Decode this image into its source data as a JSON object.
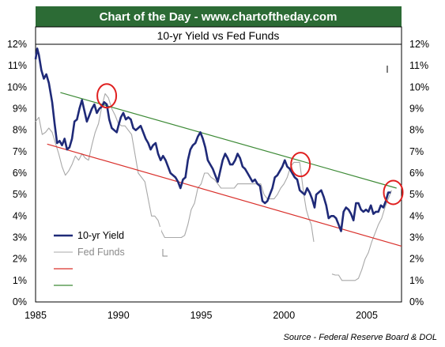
{
  "chart_data": {
    "type": "line",
    "title": "Chart of the Day - www.chartoftheday.com",
    "subtitle": "10-yr Yield vs Fed Funds",
    "source": "Source - Federal Reserve Board & DOL",
    "xlim": [
      1985,
      2007.1
    ],
    "ylim": [
      0,
      12
    ],
    "x_ticks": [
      1985,
      1990,
      1995,
      2000,
      2005
    ],
    "y_ticks": [
      "0%",
      "1%",
      "2%",
      "3%",
      "4%",
      "5%",
      "6%",
      "7%",
      "8%",
      "9%",
      "10%",
      "11%",
      "12%"
    ],
    "grid": false,
    "legend_position": "bottom-left",
    "colors": {
      "header_bg": "#2c6b35",
      "yield": "#1f2a78",
      "fed_funds": "#a8a8a8",
      "lower_trend": "#d9302b",
      "upper_trend": "#3d8a36",
      "circle": "#e02020",
      "legend_bg": "#ffffff"
    },
    "legend": [
      {
        "label": "10-yr Yield",
        "key": "yield"
      },
      {
        "label": "Fed Funds",
        "key": "fed_funds"
      },
      {
        "label": "",
        "key": "lower_trend"
      },
      {
        "label": "",
        "key": "upper_trend"
      }
    ],
    "series": [
      {
        "name": "10-yr Yield",
        "key": "yield",
        "points": [
          [
            1985.0,
            11.3
          ],
          [
            1985.1,
            11.8
          ],
          [
            1985.2,
            11.5
          ],
          [
            1985.35,
            10.8
          ],
          [
            1985.5,
            10.4
          ],
          [
            1985.65,
            10.6
          ],
          [
            1985.8,
            10.2
          ],
          [
            1986.0,
            9.3
          ],
          [
            1986.15,
            8.3
          ],
          [
            1986.3,
            7.4
          ],
          [
            1986.45,
            7.5
          ],
          [
            1986.6,
            7.3
          ],
          [
            1986.75,
            7.6
          ],
          [
            1986.9,
            7.1
          ],
          [
            1987.05,
            7.2
          ],
          [
            1987.2,
            7.6
          ],
          [
            1987.35,
            8.4
          ],
          [
            1987.5,
            8.5
          ],
          [
            1987.65,
            9.0
          ],
          [
            1987.8,
            9.4
          ],
          [
            1987.95,
            8.9
          ],
          [
            1988.1,
            8.4
          ],
          [
            1988.25,
            8.7
          ],
          [
            1988.4,
            9.0
          ],
          [
            1988.55,
            9.2
          ],
          [
            1988.7,
            8.8
          ],
          [
            1988.85,
            9.0
          ],
          [
            1989.0,
            9.1
          ],
          [
            1989.15,
            9.3
          ],
          [
            1989.3,
            9.2
          ],
          [
            1989.45,
            8.5
          ],
          [
            1989.6,
            8.1
          ],
          [
            1989.75,
            8.0
          ],
          [
            1989.9,
            7.9
          ],
          [
            1990.0,
            8.2
          ],
          [
            1990.15,
            8.6
          ],
          [
            1990.3,
            8.8
          ],
          [
            1990.45,
            8.5
          ],
          [
            1990.6,
            8.6
          ],
          [
            1990.75,
            8.5
          ],
          [
            1990.9,
            8.1
          ],
          [
            1991.05,
            8.0
          ],
          [
            1991.2,
            8.1
          ],
          [
            1991.35,
            8.2
          ],
          [
            1991.5,
            7.9
          ],
          [
            1991.65,
            7.6
          ],
          [
            1991.8,
            7.4
          ],
          [
            1991.95,
            7.1
          ],
          [
            1992.1,
            7.3
          ],
          [
            1992.25,
            7.4
          ],
          [
            1992.4,
            6.9
          ],
          [
            1992.55,
            6.6
          ],
          [
            1992.7,
            6.8
          ],
          [
            1992.85,
            6.6
          ],
          [
            1993.0,
            6.3
          ],
          [
            1993.15,
            6.0
          ],
          [
            1993.3,
            5.9
          ],
          [
            1993.45,
            5.8
          ],
          [
            1993.6,
            5.6
          ],
          [
            1993.75,
            5.3
          ],
          [
            1993.9,
            5.7
          ],
          [
            1994.05,
            5.8
          ],
          [
            1994.2,
            6.6
          ],
          [
            1994.35,
            7.1
          ],
          [
            1994.5,
            7.3
          ],
          [
            1994.65,
            7.4
          ],
          [
            1994.8,
            7.7
          ],
          [
            1994.95,
            7.9
          ],
          [
            1995.1,
            7.6
          ],
          [
            1995.25,
            7.2
          ],
          [
            1995.4,
            6.6
          ],
          [
            1995.55,
            6.4
          ],
          [
            1995.7,
            6.2
          ],
          [
            1995.85,
            5.9
          ],
          [
            1996.0,
            5.6
          ],
          [
            1996.15,
            6.1
          ],
          [
            1996.3,
            6.6
          ],
          [
            1996.45,
            6.9
          ],
          [
            1996.6,
            6.7
          ],
          [
            1996.75,
            6.4
          ],
          [
            1996.9,
            6.4
          ],
          [
            1997.05,
            6.6
          ],
          [
            1997.2,
            6.9
          ],
          [
            1997.35,
            6.7
          ],
          [
            1997.5,
            6.3
          ],
          [
            1997.65,
            6.2
          ],
          [
            1997.8,
            6.0
          ],
          [
            1997.95,
            5.8
          ],
          [
            1998.1,
            5.6
          ],
          [
            1998.25,
            5.7
          ],
          [
            1998.4,
            5.5
          ],
          [
            1998.55,
            5.4
          ],
          [
            1998.7,
            4.7
          ],
          [
            1998.85,
            4.6
          ],
          [
            1999.0,
            4.7
          ],
          [
            1999.15,
            5.0
          ],
          [
            1999.3,
            5.3
          ],
          [
            1999.45,
            5.8
          ],
          [
            1999.6,
            5.9
          ],
          [
            1999.75,
            6.1
          ],
          [
            1999.9,
            6.3
          ],
          [
            2000.05,
            6.6
          ],
          [
            2000.2,
            6.3
          ],
          [
            2000.35,
            6.2
          ],
          [
            2000.5,
            6.0
          ],
          [
            2000.65,
            5.8
          ],
          [
            2000.8,
            5.7
          ],
          [
            2000.95,
            5.2
          ],
          [
            2001.1,
            5.1
          ],
          [
            2001.25,
            5.0
          ],
          [
            2001.4,
            5.3
          ],
          [
            2001.55,
            5.1
          ],
          [
            2001.7,
            4.8
          ],
          [
            2001.85,
            4.4
          ],
          [
            2001.95,
            5.0
          ],
          [
            2002.1,
            5.1
          ],
          [
            2002.25,
            5.2
          ],
          [
            2002.4,
            4.9
          ],
          [
            2002.55,
            4.5
          ],
          [
            2002.7,
            3.9
          ],
          [
            2002.85,
            4.0
          ],
          [
            2003.0,
            4.0
          ],
          [
            2003.15,
            3.9
          ],
          [
            2003.3,
            3.6
          ],
          [
            2003.45,
            3.3
          ],
          [
            2003.6,
            4.2
          ],
          [
            2003.75,
            4.4
          ],
          [
            2003.9,
            4.3
          ],
          [
            2004.05,
            4.1
          ],
          [
            2004.2,
            3.8
          ],
          [
            2004.35,
            4.6
          ],
          [
            2004.5,
            4.6
          ],
          [
            2004.65,
            4.3
          ],
          [
            2004.8,
            4.2
          ],
          [
            2004.95,
            4.3
          ],
          [
            2005.1,
            4.2
          ],
          [
            2005.25,
            4.5
          ],
          [
            2005.4,
            4.1
          ],
          [
            2005.55,
            4.2
          ],
          [
            2005.7,
            4.2
          ],
          [
            2005.85,
            4.5
          ],
          [
            2006.0,
            4.4
          ],
          [
            2006.15,
            4.7
          ],
          [
            2006.3,
            5.1
          ],
          [
            2006.45,
            5.1
          ]
        ]
      },
      {
        "name": "Fed Funds",
        "key": "fed_funds",
        "points": [
          [
            1985.0,
            8.4
          ],
          [
            1985.2,
            8.6
          ],
          [
            1985.4,
            7.8
          ],
          [
            1985.6,
            7.9
          ],
          [
            1985.8,
            8.1
          ],
          [
            1986.0,
            7.9
          ],
          [
            1986.2,
            7.4
          ],
          [
            1986.4,
            6.9
          ],
          [
            1986.6,
            6.3
          ],
          [
            1986.8,
            5.9
          ],
          [
            1987.0,
            6.1
          ],
          [
            1987.2,
            6.4
          ],
          [
            1987.4,
            6.8
          ],
          [
            1987.6,
            6.6
          ],
          [
            1987.8,
            6.9
          ],
          [
            1988.0,
            6.7
          ],
          [
            1988.2,
            6.6
          ],
          [
            1988.4,
            7.3
          ],
          [
            1988.6,
            7.9
          ],
          [
            1988.8,
            8.3
          ],
          [
            1989.0,
            9.1
          ],
          [
            1989.2,
            9.7
          ],
          [
            1989.4,
            9.5
          ],
          [
            1989.6,
            9.0
          ],
          [
            1989.8,
            8.7
          ],
          [
            1990.0,
            8.3
          ],
          [
            1990.2,
            8.2
          ],
          [
            1990.4,
            8.2
          ],
          [
            1990.6,
            8.0
          ],
          [
            1990.8,
            7.8
          ],
          [
            1991.0,
            6.9
          ],
          [
            1991.2,
            6.0
          ],
          [
            1991.4,
            5.8
          ],
          [
            1991.6,
            5.6
          ],
          [
            1991.8,
            4.8
          ],
          [
            1992.0,
            4.0
          ],
          [
            1992.2,
            4.0
          ],
          [
            1992.4,
            3.8
          ],
          [
            1992.6,
            3.3
          ],
          [
            1992.8,
            3.0
          ],
          [
            1993.0,
            3.0
          ],
          [
            1993.2,
            3.0
          ],
          [
            1993.4,
            3.0
          ],
          [
            1993.6,
            3.0
          ],
          [
            1993.8,
            3.0
          ],
          [
            1994.0,
            3.1
          ],
          [
            1994.2,
            3.6
          ],
          [
            1994.4,
            4.3
          ],
          [
            1994.6,
            4.6
          ],
          [
            1994.8,
            5.3
          ],
          [
            1995.0,
            5.5
          ],
          [
            1995.2,
            6.0
          ],
          [
            1995.4,
            6.0
          ],
          [
            1995.6,
            5.8
          ],
          [
            1995.8,
            5.7
          ],
          [
            1996.0,
            5.5
          ],
          [
            1996.2,
            5.3
          ],
          [
            1996.4,
            5.3
          ],
          [
            1996.6,
            5.3
          ],
          [
            1996.8,
            5.3
          ],
          [
            1997.0,
            5.3
          ],
          [
            1997.2,
            5.5
          ],
          [
            1997.4,
            5.5
          ],
          [
            1997.6,
            5.5
          ],
          [
            1997.8,
            5.5
          ],
          [
            1998.0,
            5.5
          ],
          [
            1998.2,
            5.5
          ],
          [
            1998.4,
            5.5
          ],
          [
            1998.6,
            5.5
          ],
          [
            1998.8,
            5.0
          ],
          [
            1999.0,
            4.8
          ],
          [
            1999.2,
            4.8
          ],
          [
            1999.4,
            4.8
          ],
          [
            1999.6,
            5.0
          ],
          [
            1999.8,
            5.3
          ],
          [
            2000.0,
            5.5
          ],
          [
            2000.2,
            5.8
          ],
          [
            2000.4,
            6.3
          ],
          [
            2000.6,
            6.5
          ],
          [
            2000.8,
            6.5
          ],
          [
            2000.95,
            6.5
          ],
          [
            2001.05,
            5.9
          ],
          [
            2001.2,
            5.0
          ],
          [
            2001.35,
            4.3
          ],
          [
            2001.5,
            3.9
          ],
          [
            2001.65,
            3.6
          ],
          [
            2001.8,
            2.8
          ]
        ]
      },
      {
        "name": "Fed Funds",
        "key": "fed_funds",
        "points": [
          [
            2002.9,
            1.3
          ],
          [
            2003.1,
            1.25
          ],
          [
            2003.3,
            1.25
          ],
          [
            2003.5,
            1.0
          ],
          [
            2003.7,
            1.0
          ],
          [
            2003.9,
            1.0
          ],
          [
            2004.1,
            1.0
          ],
          [
            2004.3,
            1.0
          ],
          [
            2004.5,
            1.1
          ],
          [
            2004.7,
            1.5
          ],
          [
            2004.9,
            2.0
          ],
          [
            2005.1,
            2.3
          ],
          [
            2005.3,
            2.8
          ],
          [
            2005.5,
            3.2
          ],
          [
            2005.7,
            3.6
          ],
          [
            2005.9,
            3.9
          ],
          [
            2006.1,
            4.4
          ],
          [
            2006.3,
            4.8
          ],
          [
            2006.5,
            5.2
          ]
        ]
      },
      {
        "name": "Lower trend",
        "key": "lower_trend",
        "points": [
          [
            1985.7,
            7.35
          ],
          [
            2007.1,
            2.6
          ]
        ]
      },
      {
        "name": "Upper trend",
        "key": "upper_trend",
        "points": [
          [
            1986.5,
            9.75
          ],
          [
            2006.8,
            5.3
          ]
        ]
      }
    ],
    "annotations": [
      {
        "type": "circle",
        "x": 1989.3,
        "y": 9.6
      },
      {
        "type": "circle",
        "x": 2001.0,
        "y": 6.4
      },
      {
        "type": "circle",
        "x": 2006.6,
        "y": 5.1
      }
    ]
  }
}
